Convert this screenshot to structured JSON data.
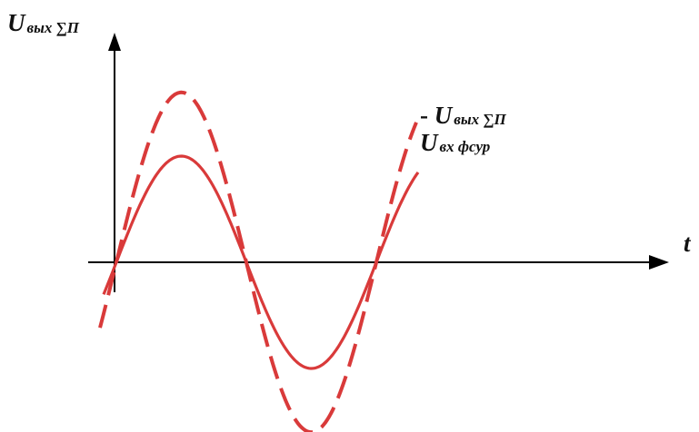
{
  "colors": {
    "axis": "#000000",
    "wave": "#d93a3a"
  },
  "labels": {
    "y_axis": {
      "main": "U",
      "sub": "вых ∑П"
    },
    "x_axis": "t",
    "legend_dashed": {
      "prefix": "- ",
      "main": "U",
      "sub": "вых ∑П"
    },
    "legend_solid": {
      "main": "U",
      "sub": "вх фсур"
    }
  },
  "curves": {
    "dashed": {
      "name": "U вых ∑П",
      "style": "dashed",
      "amplitude": 1.6
    },
    "solid": {
      "name": "U вх фсур",
      "style": "solid",
      "amplitude": 1.0
    }
  }
}
